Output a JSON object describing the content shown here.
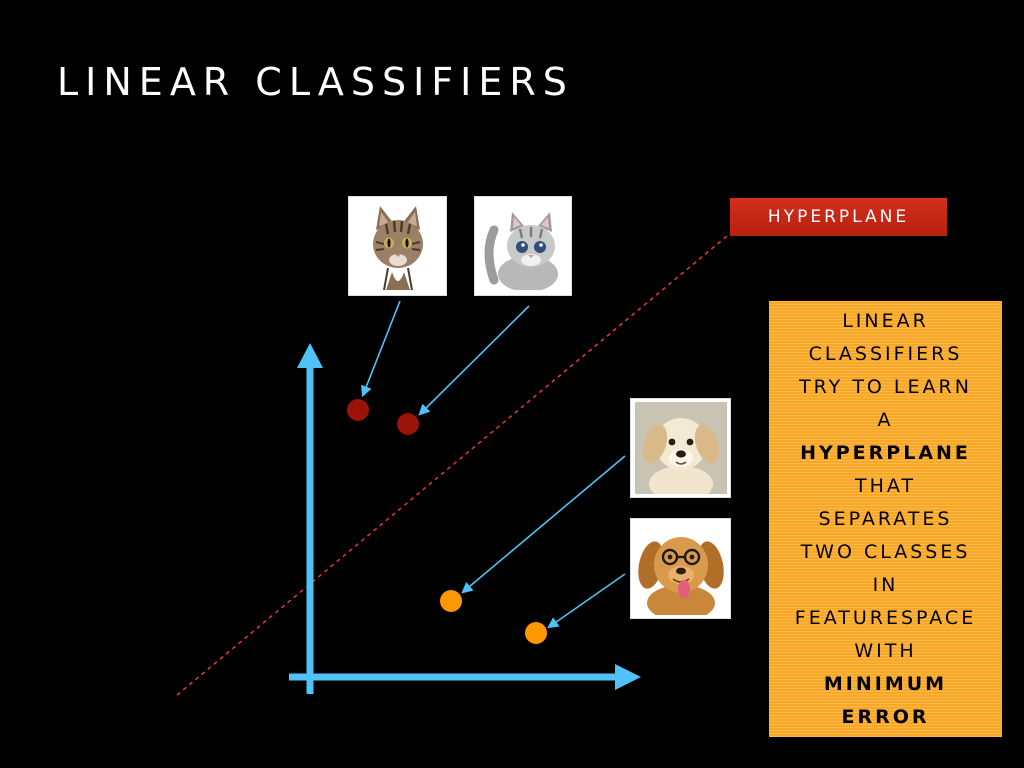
{
  "slide": {
    "title": "LINEAR CLASSIFIERS"
  },
  "hyperplane_label": "HYPERPLANE",
  "callout": {
    "lines": [
      {
        "text": "LINEAR",
        "bold": false
      },
      {
        "text": "CLASSIFIERS",
        "bold": false
      },
      {
        "text": "TRY TO LEARN",
        "bold": false
      },
      {
        "text": "A",
        "bold": false
      },
      {
        "text": "HYPERPLANE",
        "bold": true
      },
      {
        "text": "THAT",
        "bold": false
      },
      {
        "text": "SEPARATES",
        "bold": false
      },
      {
        "text": "TWO CLASSES",
        "bold": false
      },
      {
        "text": "IN",
        "bold": false
      },
      {
        "text": "FEATURESPACE",
        "bold": false
      },
      {
        "text": "WITH",
        "bold": false
      },
      {
        "text": "MINIMUM",
        "bold": true
      },
      {
        "text": "ERROR",
        "bold": true
      }
    ]
  },
  "images": [
    {
      "name": "tabby-cat-photo",
      "depicts": "cat"
    },
    {
      "name": "kitten-photo",
      "depicts": "kitten"
    },
    {
      "name": "puppy-photo",
      "depicts": "puppy"
    },
    {
      "name": "dog-with-glasses-photo",
      "depicts": "dog"
    }
  ],
  "colors": {
    "background": "#000000",
    "axis": "#4fc3f7",
    "pointer": "#4fc3f7",
    "cat_points": "#9b1208",
    "dog_points": "#ff9800",
    "hyperplane_line": "#e53935",
    "label_bg": "#c62814",
    "callout_bg": "#f9a825"
  }
}
